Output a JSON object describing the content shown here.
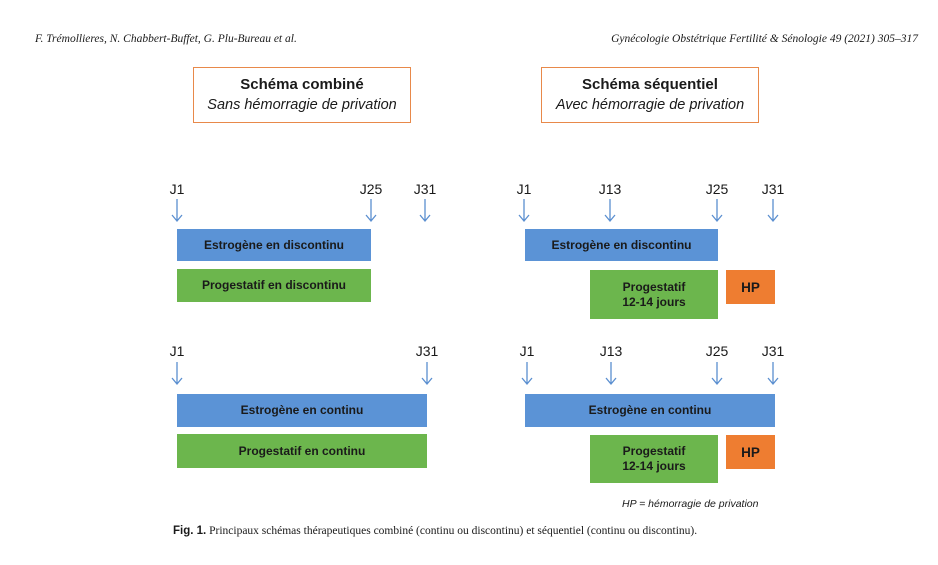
{
  "header": {
    "authors": "F. Trémollieres, N. Chabbert-Buffet, G. Plu-Bureau et al.",
    "journal": "Gynécologie Obstétrique Fertilité & Sénologie 49 (2021) 305–317"
  },
  "left_title": {
    "line1": "Schéma combiné",
    "line2": "Sans hémorragie de privation"
  },
  "right_title": {
    "line1": "Schéma séquentiel",
    "line2": "Avec hémorragie de privation"
  },
  "days": {
    "j1": "J1",
    "j13": "J13",
    "j25": "J25",
    "j31": "J31"
  },
  "bars": {
    "estro_discontinu": "Estrogène en discontinu",
    "progest_discontinu": "Progestatif en discontinu",
    "estro_continu": "Estrogène en continu",
    "progest_continu": "Progestatif en continu",
    "progest_1214_line1": "Progestatif",
    "progest_1214_line2": "12-14 jours",
    "hp": "HP"
  },
  "note": "HP = hémorragie de privation",
  "caption": {
    "label": "Fig. 1.",
    "text": " Principaux schémas thérapeutiques combiné (continu ou discontinu) et séquentiel (continu ou discontinu)."
  },
  "colors": {
    "estrogen": "#5b93d6",
    "progestin": "#6cb64d",
    "hp": "#ee7d31",
    "title_border": "#e8894a",
    "arrow": "#5b8fd0"
  },
  "icons": {
    "day_marker": "arrow-down-icon"
  }
}
